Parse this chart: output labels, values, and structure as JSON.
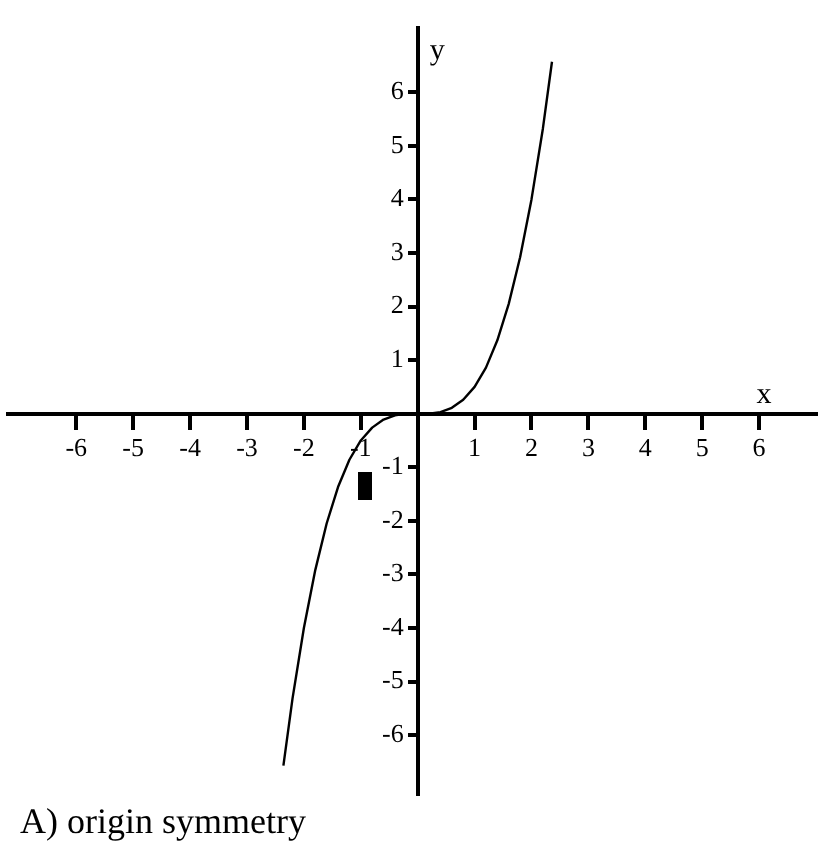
{
  "chart_data": {
    "type": "line",
    "xlabel": "x",
    "ylabel": "y",
    "annotations": [
      "A) origin symmetry"
    ],
    "x": [
      -2.36,
      -2.2,
      -2,
      -1.8,
      -1.6,
      -1.4,
      -1.2,
      -1,
      -0.8,
      -0.6,
      -0.4,
      -0.2,
      0,
      0.2,
      0.4,
      0.6,
      0.8,
      1,
      1.2,
      1.4,
      1.6,
      1.8,
      2,
      2.2,
      2.36
    ],
    "series": [
      {
        "color": "#000000",
        "values": [
          -6.57,
          -5.32,
          -4,
          -2.92,
          -2.05,
          -1.37,
          -0.86,
          -0.5,
          -0.26,
          -0.11,
          -0.03,
          0,
          0,
          0,
          0.03,
          0.11,
          0.26,
          0.5,
          0.86,
          1.37,
          2.05,
          2.92,
          4,
          5.32,
          6.57
        ]
      }
    ],
    "xlim": [
      -7.2,
      7
    ],
    "ylim": [
      -7.1,
      7.2
    ],
    "xticks": [
      -6,
      -5,
      -4,
      -3,
      -2,
      -1,
      1,
      2,
      3,
      4,
      5,
      6
    ],
    "yticks": [
      -6,
      -5,
      -4,
      -3,
      -2,
      -1,
      1,
      2,
      3,
      4,
      5,
      6
    ],
    "grid": false,
    "legend": false,
    "marker": "none",
    "line_style": "solid"
  }
}
